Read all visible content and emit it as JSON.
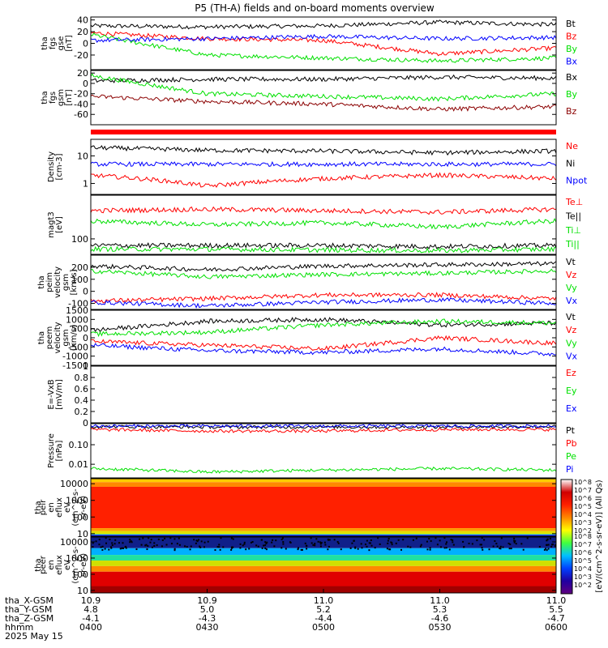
{
  "title": "P5 (TH-A) fields and on-board moments overview",
  "colors": {
    "black": "#000000",
    "red": "#ff0000",
    "green": "#00e000",
    "blue": "#0000ff",
    "darkred": "#8b0000"
  },
  "panels": [
    {
      "id": "fgs-gse",
      "ylabel": [
        "tha",
        "fgs",
        "gse",
        "[nT]"
      ],
      "scale": "linear",
      "ylim": [
        -45,
        45
      ],
      "yticks": [
        40,
        20,
        0,
        -20
      ],
      "legend": [
        {
          "name": "Bt",
          "color": "#000000"
        },
        {
          "name": "Bz",
          "color": "#ff0000"
        },
        {
          "name": "By",
          "color": "#00e000"
        },
        {
          "name": "Bx",
          "color": "#0000ff"
        }
      ]
    },
    {
      "id": "fgs-gsm",
      "ylabel": [
        "tha",
        "fgs",
        "gsm",
        "[nT]"
      ],
      "scale": "linear",
      "ylim": [
        -80,
        25
      ],
      "yticks": [
        20,
        0,
        -20,
        -40,
        -60
      ],
      "legend": [
        {
          "name": "Bx",
          "color": "#000000"
        },
        {
          "name": "By",
          "color": "#00e000"
        },
        {
          "name": "Bz",
          "color": "#8b0000"
        }
      ]
    },
    {
      "id": "density",
      "ylabel": [
        "Density",
        "[cm-3]"
      ],
      "scale": "log",
      "ylim": [
        0.4,
        40
      ],
      "yticks": [
        10,
        1
      ],
      "legend": [
        {
          "name": "Ne",
          "color": "#ff0000"
        },
        {
          "name": "Ni",
          "color": "#000000"
        },
        {
          "name": "Npot",
          "color": "#0000ff"
        }
      ]
    },
    {
      "id": "temperature",
      "ylabel": [
        "magt3",
        "[eV]"
      ],
      "scale": "log",
      "ylim": [
        30,
        3000
      ],
      "yticks": [
        100
      ],
      "legend": [
        {
          "name": "Te⊥",
          "color": "#ff0000"
        },
        {
          "name": "Te||",
          "color": "#000000"
        },
        {
          "name": "Ti⊥",
          "color": "#00e000"
        },
        {
          "name": "Ti||",
          "color": "#00e000"
        }
      ]
    },
    {
      "id": "peim-velocity",
      "ylabel": [
        "tha",
        "peim",
        "velocity",
        "gsm",
        "[km/s]"
      ],
      "scale": "linear",
      "ylim": [
        -150,
        300
      ],
      "yticks": [
        200,
        100,
        0,
        -100
      ],
      "legend": [
        {
          "name": "Vt",
          "color": "#000000"
        },
        {
          "name": "Vz",
          "color": "#ff0000"
        },
        {
          "name": "Vy",
          "color": "#00e000"
        },
        {
          "name": "Vx",
          "color": "#0000ff"
        }
      ]
    },
    {
      "id": "peem-velocity",
      "ylabel": [
        "tha",
        "peem",
        "velocity",
        "gsm",
        "[km/s]"
      ],
      "scale": "linear",
      "ylim": [
        -1500,
        1500
      ],
      "yticks": [
        1500,
        1000,
        500,
        0,
        -500,
        -1000,
        -1500
      ],
      "legend": [
        {
          "name": "Vt",
          "color": "#000000"
        },
        {
          "name": "Vz",
          "color": "#ff0000"
        },
        {
          "name": "Vy",
          "color": "#00e000"
        },
        {
          "name": "Vx",
          "color": "#0000ff"
        }
      ]
    },
    {
      "id": "efield",
      "ylabel": [
        "E=-VxB",
        "[mV/m]"
      ],
      "scale": "linear",
      "ylim": [
        0,
        1
      ],
      "yticks": [
        1.0,
        0.8,
        0.6,
        0.4,
        0.2,
        0.0
      ],
      "legend": [
        {
          "name": "Ez",
          "color": "#ff0000"
        },
        {
          "name": "Ey",
          "color": "#00e000"
        },
        {
          "name": "Ex",
          "color": "#0000ff"
        }
      ]
    },
    {
      "id": "pressure",
      "ylabel": [
        "Pressure",
        "[nPa]"
      ],
      "scale": "log",
      "ylim": [
        0.002,
        1.2
      ],
      "yticks": [
        0.1,
        0.01
      ],
      "yticklabels": [
        "0.10",
        "0.01"
      ],
      "legend": [
        {
          "name": "Pt",
          "color": "#000000"
        },
        {
          "name": "Pb",
          "color": "#ff0000"
        },
        {
          "name": "Pe",
          "color": "#00e000"
        },
        {
          "name": "Pi",
          "color": "#0000ff"
        }
      ]
    },
    {
      "id": "peir-spec",
      "ylabel": [
        "tha",
        "peir",
        "en",
        "eflux",
        "eV",
        "(cm^2-s-",
        "sr-eV)"
      ],
      "scale": "log",
      "ylim": [
        7,
        20000
      ],
      "yticks": [
        10000,
        1000,
        100,
        10
      ],
      "yticklabels": [
        "10000",
        "1000",
        "100",
        "10"
      ]
    },
    {
      "id": "peer-spec",
      "ylabel": [
        "tha",
        "peer",
        "en",
        "eflux",
        "eV",
        "(cm^2-s-",
        "sr-eV)"
      ],
      "scale": "log",
      "ylim": [
        7,
        20000
      ],
      "yticks": [
        10000,
        1000,
        100,
        10
      ],
      "yticklabels": [
        "10000",
        "1000",
        "100",
        "10"
      ]
    }
  ],
  "colorbar": {
    "label": "[eV/(cm^2-s-sr-eV)] (All Qs)",
    "ticks_upper": [
      "10^8",
      "10^7",
      "10^6",
      "10^5",
      "10^4",
      "10^3",
      "10^2"
    ],
    "ticks_lower": [
      "10^8",
      "10^7",
      "10^6",
      "10^5",
      "10^4",
      "10^3",
      "10^2"
    ]
  },
  "xaxis": {
    "rows": [
      {
        "label": "tha_X-GSM",
        "values": [
          "10.9",
          "10.9",
          "11.0",
          "11.0",
          "11.0"
        ]
      },
      {
        "label": "tha_Y-GSM",
        "values": [
          "4.8",
          "5.0",
          "5.2",
          "5.3",
          "5.5"
        ]
      },
      {
        "label": "tha_Z-GSM",
        "values": [
          "-4.1",
          "-4.3",
          "-4.4",
          "-4.6",
          "-4.7"
        ]
      },
      {
        "label": "hhmm",
        "values": [
          "0400",
          "0430",
          "0500",
          "0530",
          "0600"
        ]
      }
    ],
    "date": "2025 May 15"
  },
  "chart_data": {
    "type": "line",
    "title": "P5 (TH-A) fields and on-board moments overview",
    "x": [
      "0400",
      "0430",
      "0500",
      "0530",
      "0600"
    ],
    "series": [
      {
        "panel": "fgs-gse",
        "name": "Bt",
        "values": [
          30,
          28,
          30,
          36,
          32
        ]
      },
      {
        "panel": "fgs-gse",
        "name": "Bz",
        "values": [
          18,
          8,
          5,
          -18,
          -8
        ]
      },
      {
        "panel": "fgs-gse",
        "name": "By",
        "values": [
          15,
          -20,
          -25,
          -30,
          -25
        ]
      },
      {
        "panel": "fgs-gse",
        "name": "Bx",
        "values": [
          5,
          8,
          12,
          8,
          10
        ]
      },
      {
        "panel": "fgs-gsm",
        "name": "Bx",
        "values": [
          5,
          8,
          8,
          12,
          10
        ]
      },
      {
        "panel": "fgs-gsm",
        "name": "By",
        "values": [
          15,
          -20,
          -25,
          -30,
          -20
        ]
      },
      {
        "panel": "fgs-gsm",
        "name": "Bz",
        "values": [
          -25,
          -35,
          -40,
          -50,
          -45
        ]
      },
      {
        "panel": "density",
        "name": "Ne",
        "values": [
          2,
          0.8,
          1.5,
          2,
          1.5
        ]
      },
      {
        "panel": "density",
        "name": "Ni",
        "values": [
          20,
          16,
          15,
          13,
          15
        ]
      },
      {
        "panel": "density",
        "name": "Npot",
        "values": [
          5,
          5,
          5,
          5,
          5
        ]
      },
      {
        "panel": "temperature",
        "name": "Te⊥",
        "values": [
          900,
          1000,
          900,
          800,
          1000
        ]
      },
      {
        "panel": "temperature",
        "name": "Ti⊥",
        "values": [
          400,
          300,
          350,
          250,
          400
        ]
      },
      {
        "panel": "temperature",
        "name": "Te||",
        "values": [
          60,
          60,
          60,
          55,
          60
        ]
      },
      {
        "panel": "temperature",
        "name": "Ti||",
        "values": [
          45,
          45,
          42,
          40,
          45
        ]
      },
      {
        "panel": "peim-velocity",
        "name": "Vt",
        "values": [
          210,
          180,
          210,
          220,
          230
        ]
      },
      {
        "panel": "peim-velocity",
        "name": "Vy",
        "values": [
          170,
          120,
          140,
          150,
          170
        ]
      },
      {
        "panel": "peim-velocity",
        "name": "Vz",
        "values": [
          -80,
          -60,
          -30,
          -30,
          -60
        ]
      },
      {
        "panel": "peim-velocity",
        "name": "Vx",
        "values": [
          -90,
          -120,
          -90,
          -70,
          -100
        ]
      },
      {
        "panel": "peem-velocity",
        "name": "Vt",
        "values": [
          400,
          900,
          1000,
          700,
          800
        ]
      },
      {
        "panel": "peem-velocity",
        "name": "Vz",
        "values": [
          -200,
          -400,
          -600,
          0,
          -300
        ]
      },
      {
        "panel": "peem-velocity",
        "name": "Vy",
        "values": [
          200,
          300,
          700,
          900,
          800
        ]
      },
      {
        "panel": "peem-velocity",
        "name": "Vx",
        "values": [
          -400,
          -700,
          -800,
          -600,
          -900
        ]
      },
      {
        "panel": "pressure",
        "name": "Pt",
        "values": [
          0.85,
          0.8,
          0.8,
          0.8,
          0.85
        ]
      },
      {
        "panel": "pressure",
        "name": "Pb",
        "values": [
          0.6,
          0.5,
          0.5,
          0.6,
          0.6
        ]
      },
      {
        "panel": "pressure",
        "name": "Pe",
        "values": [
          0.006,
          0.004,
          0.005,
          0.006,
          0.005
        ]
      },
      {
        "panel": "pressure",
        "name": "Pi",
        "values": [
          0.9,
          0.9,
          0.9,
          0.9,
          0.9
        ]
      }
    ]
  }
}
